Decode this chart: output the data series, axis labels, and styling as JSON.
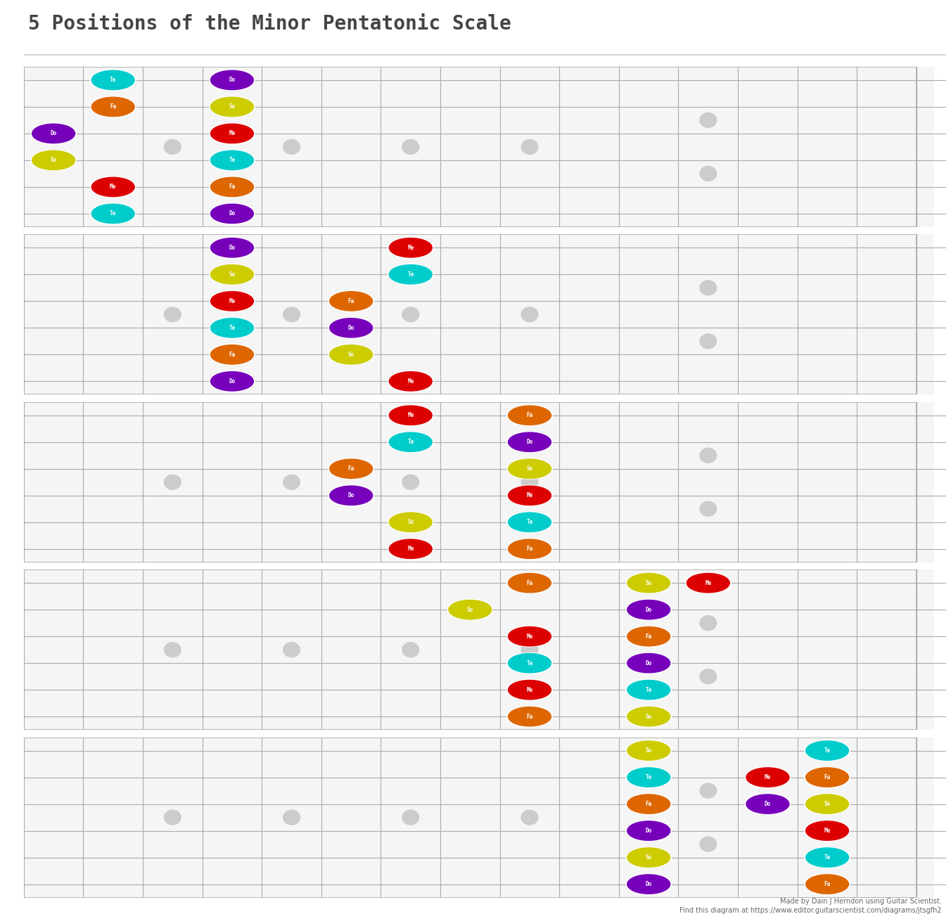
{
  "title": "5 Positions of the Minor Pentatonic Scale",
  "bg_color": "#ffffff",
  "num_strings": 6,
  "num_frets": 15,
  "note_colors": {
    "Do": "#7700bb",
    "Me": "#dd0000",
    "Fa": "#dd6600",
    "So": "#cccc00",
    "Te": "#00cccc"
  },
  "diagrams": [
    {
      "notes": [
        {
          "string": 1,
          "fret": 2,
          "label": "Te",
          "color": "#00cccc"
        },
        {
          "string": 1,
          "fret": 4,
          "label": "Do",
          "color": "#7700bb"
        },
        {
          "string": 2,
          "fret": 2,
          "label": "Fa",
          "color": "#dd6600"
        },
        {
          "string": 2,
          "fret": 4,
          "label": "So",
          "color": "#cccc00"
        },
        {
          "string": 3,
          "fret": 1,
          "label": "Do",
          "color": "#7700bb"
        },
        {
          "string": 3,
          "fret": 4,
          "label": "Me",
          "color": "#dd0000"
        },
        {
          "string": 4,
          "fret": 1,
          "label": "So",
          "color": "#cccc00"
        },
        {
          "string": 4,
          "fret": 4,
          "label": "Te",
          "color": "#00cccc"
        },
        {
          "string": 5,
          "fret": 2,
          "label": "Me",
          "color": "#dd0000"
        },
        {
          "string": 5,
          "fret": 4,
          "label": "Fa",
          "color": "#dd6600"
        },
        {
          "string": 6,
          "fret": 2,
          "label": "Te",
          "color": "#00cccc"
        },
        {
          "string": 6,
          "fret": 4,
          "label": "Do",
          "color": "#7700bb"
        }
      ]
    },
    {
      "notes": [
        {
          "string": 1,
          "fret": 4,
          "label": "Do",
          "color": "#7700bb"
        },
        {
          "string": 1,
          "fret": 7,
          "label": "Me",
          "color": "#dd0000"
        },
        {
          "string": 2,
          "fret": 4,
          "label": "So",
          "color": "#cccc00"
        },
        {
          "string": 2,
          "fret": 7,
          "label": "Te",
          "color": "#00cccc"
        },
        {
          "string": 3,
          "fret": 4,
          "label": "Me",
          "color": "#dd0000"
        },
        {
          "string": 3,
          "fret": 6,
          "label": "Fa",
          "color": "#dd6600"
        },
        {
          "string": 4,
          "fret": 4,
          "label": "Te",
          "color": "#00cccc"
        },
        {
          "string": 4,
          "fret": 6,
          "label": "Do",
          "color": "#7700bb"
        },
        {
          "string": 5,
          "fret": 4,
          "label": "Fa",
          "color": "#dd6600"
        },
        {
          "string": 5,
          "fret": 6,
          "label": "So",
          "color": "#cccc00"
        },
        {
          "string": 6,
          "fret": 4,
          "label": "Do",
          "color": "#7700bb"
        },
        {
          "string": 6,
          "fret": 7,
          "label": "Me",
          "color": "#dd0000"
        }
      ]
    },
    {
      "notes": [
        {
          "string": 1,
          "fret": 7,
          "label": "Me",
          "color": "#dd0000"
        },
        {
          "string": 1,
          "fret": 9,
          "label": "Fa",
          "color": "#dd6600"
        },
        {
          "string": 2,
          "fret": 7,
          "label": "Te",
          "color": "#00cccc"
        },
        {
          "string": 2,
          "fret": 9,
          "label": "Do",
          "color": "#7700bb"
        },
        {
          "string": 3,
          "fret": 6,
          "label": "Fa",
          "color": "#dd6600"
        },
        {
          "string": 3,
          "fret": 9,
          "label": "So",
          "color": "#cccc00"
        },
        {
          "string": 4,
          "fret": 6,
          "label": "Do",
          "color": "#7700bb"
        },
        {
          "string": 4,
          "fret": 9,
          "label": "Me",
          "color": "#dd0000"
        },
        {
          "string": 5,
          "fret": 7,
          "label": "So",
          "color": "#cccc00"
        },
        {
          "string": 5,
          "fret": 9,
          "label": "Te",
          "color": "#00cccc"
        },
        {
          "string": 6,
          "fret": 7,
          "label": "Me",
          "color": "#dd0000"
        },
        {
          "string": 6,
          "fret": 9,
          "label": "Fa",
          "color": "#dd6600"
        }
      ]
    },
    {
      "notes": [
        {
          "string": 1,
          "fret": 9,
          "label": "Fa",
          "color": "#dd6600"
        },
        {
          "string": 1,
          "fret": 11,
          "label": "So",
          "color": "#cccc00"
        },
        {
          "string": 2,
          "fret": 8,
          "label": "So",
          "color": "#cccc00"
        },
        {
          "string": 2,
          "fret": 11,
          "label": "Do",
          "color": "#7700bb"
        },
        {
          "string": 3,
          "fret": 9,
          "label": "Me",
          "color": "#dd0000"
        },
        {
          "string": 3,
          "fret": 11,
          "label": "Fa",
          "color": "#dd6600"
        },
        {
          "string": 4,
          "fret": 9,
          "label": "Te",
          "color": "#00cccc"
        },
        {
          "string": 4,
          "fret": 11,
          "label": "Do",
          "color": "#7700bb"
        },
        {
          "string": 5,
          "fret": 9,
          "label": "Me",
          "color": "#dd0000"
        },
        {
          "string": 5,
          "fret": 11,
          "label": "Te",
          "color": "#00cccc"
        },
        {
          "string": 6,
          "fret": 9,
          "label": "Fa",
          "color": "#dd6600"
        },
        {
          "string": 6,
          "fret": 11,
          "label": "So",
          "color": "#cccc00"
        },
        {
          "string": 1,
          "fret": 12,
          "label": "Me",
          "color": "#dd0000"
        }
      ]
    },
    {
      "notes": [
        {
          "string": 1,
          "fret": 11,
          "label": "So",
          "color": "#cccc00"
        },
        {
          "string": 1,
          "fret": 14,
          "label": "Te",
          "color": "#00cccc"
        },
        {
          "string": 2,
          "fret": 11,
          "label": "Te",
          "color": "#00cccc"
        },
        {
          "string": 2,
          "fret": 13,
          "label": "Me",
          "color": "#dd0000"
        },
        {
          "string": 2,
          "fret": 14,
          "label": "Fa",
          "color": "#dd6600"
        },
        {
          "string": 3,
          "fret": 11,
          "label": "Fa",
          "color": "#dd6600"
        },
        {
          "string": 3,
          "fret": 13,
          "label": "Do",
          "color": "#7700bb"
        },
        {
          "string": 3,
          "fret": 14,
          "label": "So",
          "color": "#cccc00"
        },
        {
          "string": 4,
          "fret": 11,
          "label": "Do",
          "color": "#7700bb"
        },
        {
          "string": 4,
          "fret": 14,
          "label": "Me",
          "color": "#dd0000"
        },
        {
          "string": 5,
          "fret": 11,
          "label": "So",
          "color": "#cccc00"
        },
        {
          "string": 5,
          "fret": 14,
          "label": "Te",
          "color": "#00cccc"
        },
        {
          "string": 6,
          "fret": 11,
          "label": "Do",
          "color": "#7700bb"
        },
        {
          "string": 6,
          "fret": 14,
          "label": "Fa",
          "color": "#dd6600"
        }
      ]
    }
  ]
}
